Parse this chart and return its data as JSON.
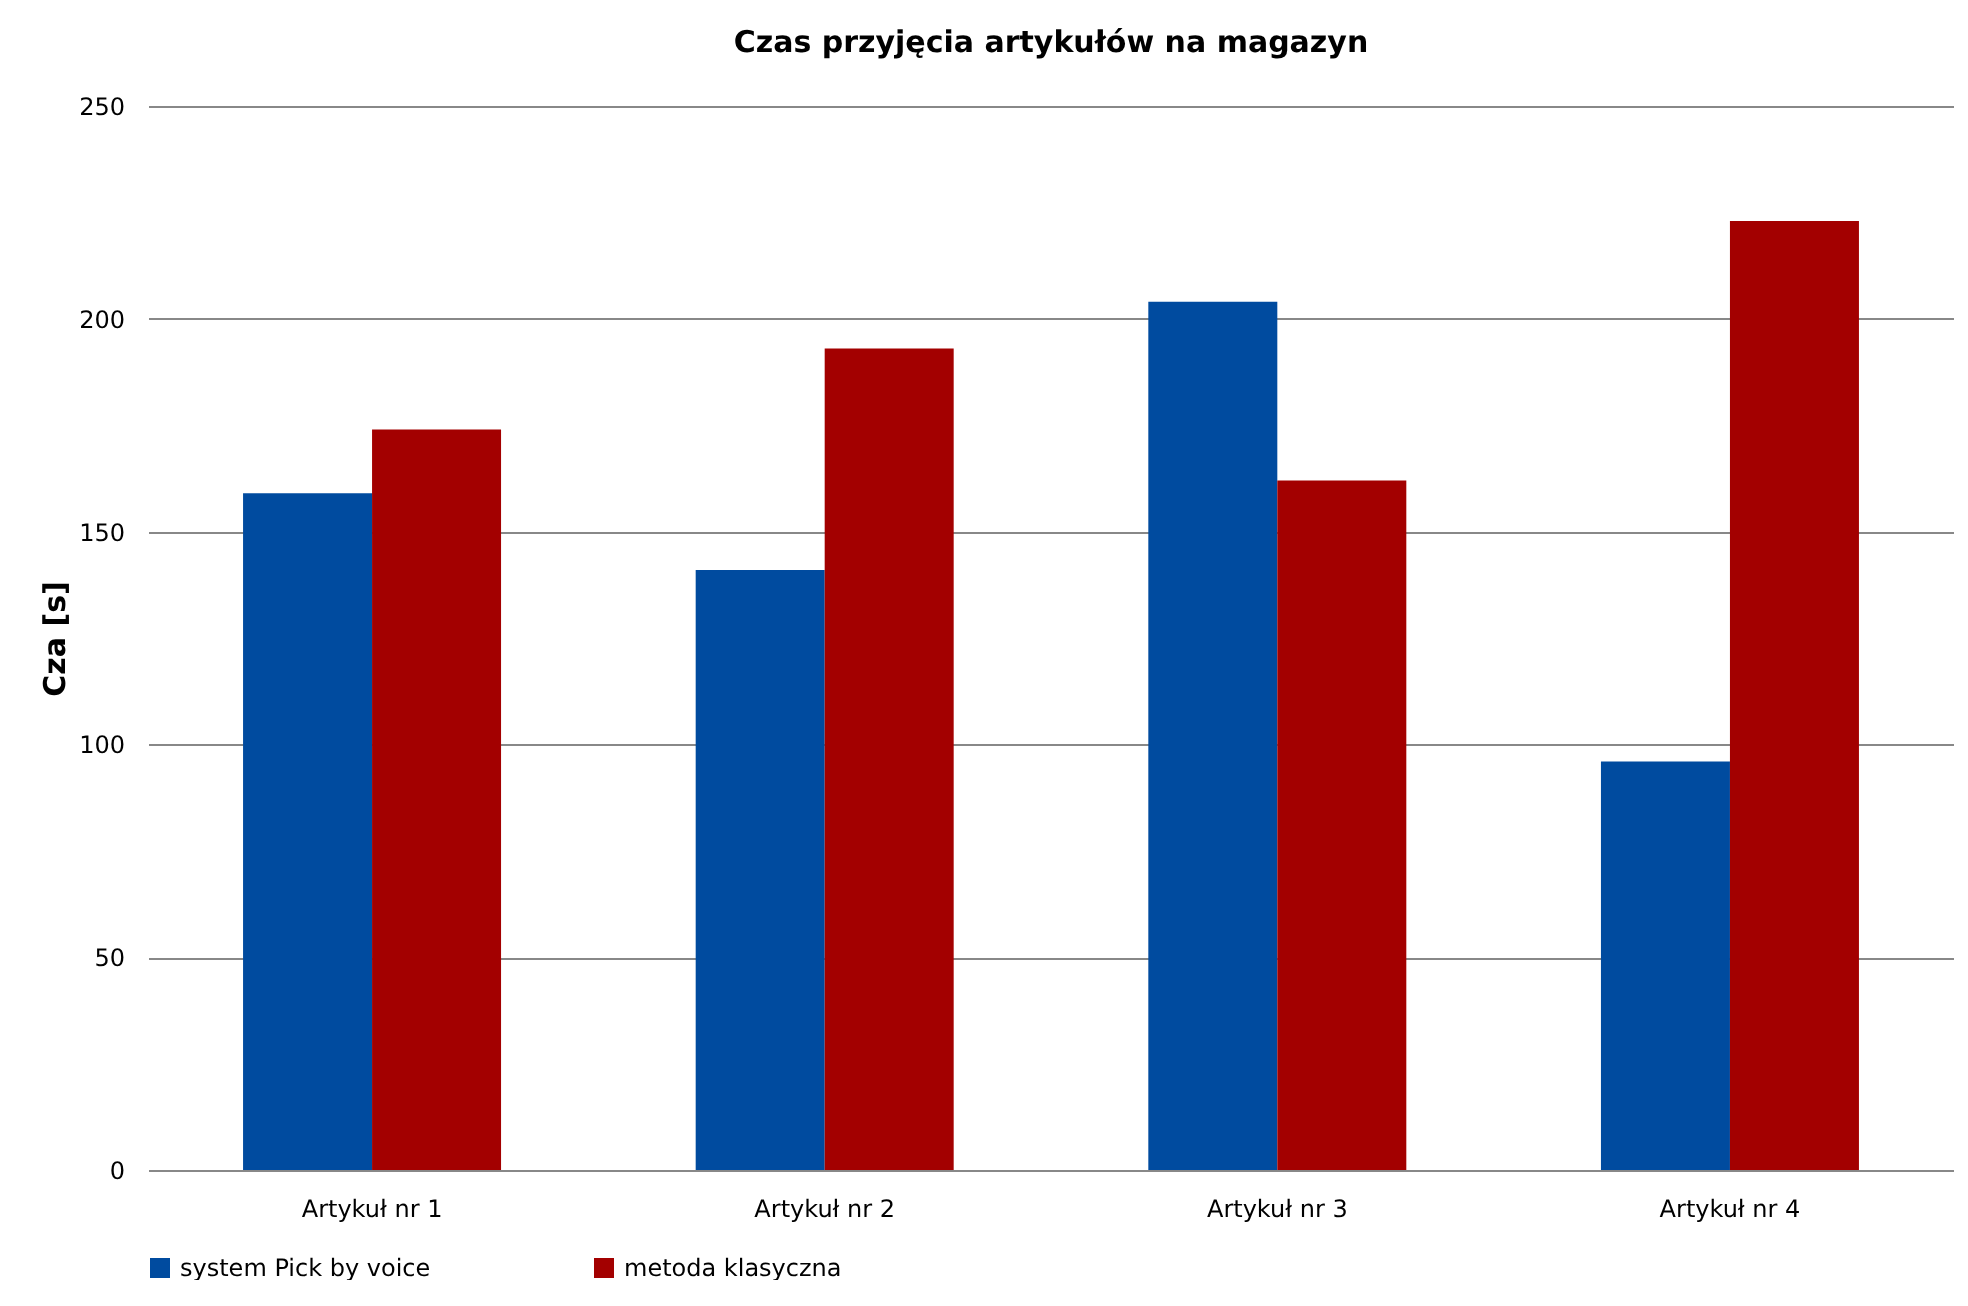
{
  "chart_data": {
    "type": "bar",
    "title": "Czas przyjęcia artykułów na magazyn",
    "ylabel": "Cza [s]",
    "categories": [
      "Artykuł nr 1",
      "Artykuł nr 2",
      "Artykuł nr 3",
      "Artykuł nr 4"
    ],
    "series": [
      {
        "name": "system Pick by voice",
        "color": "#004b9f",
        "values": [
          159,
          141,
          204,
          96
        ]
      },
      {
        "name": "metoda klasyczna",
        "color": "#a30000",
        "values": [
          174,
          193,
          162,
          223
        ]
      }
    ],
    "ylim": [
      0,
      250
    ],
    "yticks": [
      0,
      50,
      100,
      150,
      200,
      250
    ],
    "grid": "y",
    "legend": "bottom"
  }
}
